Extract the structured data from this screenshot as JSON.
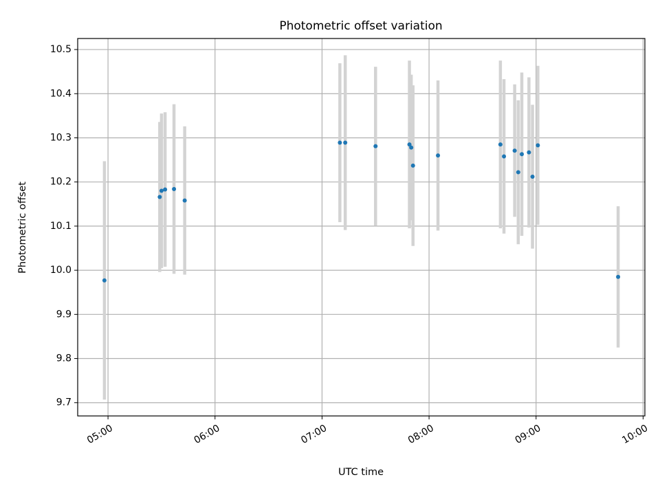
{
  "chart_data": {
    "type": "scatter",
    "title": "Photometric offset variation",
    "xlabel": "UTC time",
    "ylabel": "Photometric offset",
    "x_ticks": [
      "05:00",
      "06:00",
      "07:00",
      "08:00",
      "09:00",
      "10:00"
    ],
    "xlim": [
      "04:43",
      "10:01"
    ],
    "ylim": [
      9.67,
      10.525
    ],
    "y_ticks": [
      9.7,
      9.8,
      9.9,
      10.0,
      10.1,
      10.2,
      10.3,
      10.4,
      10.5
    ],
    "y_tick_labels": [
      "9.7",
      "9.8",
      "9.9",
      "10.0",
      "10.1",
      "10.2",
      "10.3",
      "10.4",
      "10.5"
    ],
    "grid": true,
    "marker_color": "#1f77b4",
    "errorbar_color": "#d3d3d3",
    "points": [
      {
        "x": "04:58",
        "y": 9.977,
        "err": 0.27
      },
      {
        "x": "05:29",
        "y": 10.166,
        "err": 0.17
      },
      {
        "x": "05:30",
        "y": 10.18,
        "err": 0.175
      },
      {
        "x": "05:32",
        "y": 10.183,
        "err": 0.175
      },
      {
        "x": "05:37",
        "y": 10.184,
        "err": 0.192
      },
      {
        "x": "05:43",
        "y": 10.158,
        "err": 0.168
      },
      {
        "x": "07:10",
        "y": 10.289,
        "err": 0.18
      },
      {
        "x": "07:13",
        "y": 10.289,
        "err": 0.198
      },
      {
        "x": "07:30",
        "y": 10.281,
        "err": 0.18
      },
      {
        "x": "07:49",
        "y": 10.285,
        "err": 0.19
      },
      {
        "x": "07:50",
        "y": 10.278,
        "err": 0.165
      },
      {
        "x": "07:51",
        "y": 10.237,
        "err": 0.182
      },
      {
        "x": "08:05",
        "y": 10.26,
        "err": 0.17
      },
      {
        "x": "08:40",
        "y": 10.285,
        "err": 0.19
      },
      {
        "x": "08:42",
        "y": 10.258,
        "err": 0.175
      },
      {
        "x": "08:48",
        "y": 10.271,
        "err": 0.15
      },
      {
        "x": "08:50",
        "y": 10.222,
        "err": 0.163
      },
      {
        "x": "08:52",
        "y": 10.263,
        "err": 0.185
      },
      {
        "x": "08:56",
        "y": 10.267,
        "err": 0.17
      },
      {
        "x": "08:58",
        "y": 10.212,
        "err": 0.163
      },
      {
        "x": "09:01",
        "y": 10.283,
        "err": 0.18
      },
      {
        "x": "09:46",
        "y": 9.985,
        "err": 0.16
      }
    ]
  }
}
